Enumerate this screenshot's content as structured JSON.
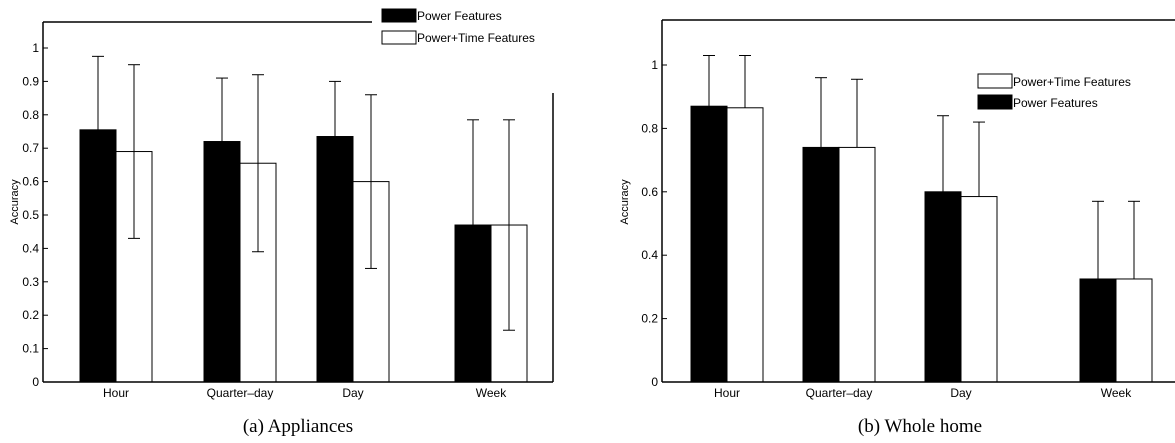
{
  "chart_data": [
    {
      "type": "bar",
      "caption": "(a) Appliances",
      "categories": [
        "Hour",
        "Quarter–day",
        "Day",
        "Week"
      ],
      "ylabel": "Accuracy",
      "ylim": [
        0,
        1.07
      ],
      "yticks": [
        "0",
        "0.1",
        "0.2",
        "0.3",
        "0.4",
        "0.5",
        "0.6",
        "0.7",
        "0.8",
        "0.9",
        "1"
      ],
      "ytick_values": [
        0,
        0.1,
        0.2,
        0.3,
        0.4,
        0.5,
        0.6,
        0.7,
        0.8,
        0.9,
        1
      ],
      "legend_placement": "top-right",
      "series": [
        {
          "name": "Power Features",
          "color": "#000000",
          "values": [
            0.755,
            0.72,
            0.735,
            0.47
          ],
          "err_upper": [
            0.975,
            0.91,
            0.9,
            0.785
          ]
        },
        {
          "name": "Power+Time Features",
          "color": "#ffffff",
          "values": [
            0.69,
            0.655,
            0.6,
            0.47
          ],
          "err_lower": [
            0.43,
            0.39,
            0.34,
            0.155
          ],
          "err_upper": [
            0.95,
            0.92,
            0.86,
            0.785
          ]
        }
      ]
    },
    {
      "type": "bar",
      "caption": "(b) Whole home",
      "categories": [
        "Hour",
        "Quarter–day",
        "Day",
        "Week"
      ],
      "ylabel": "Accuracy",
      "ylim": [
        0,
        1.07
      ],
      "yticks": [
        "0",
        "0.2",
        "0.4",
        "0.6",
        "0.8",
        "1"
      ],
      "ytick_values": [
        0,
        0.2,
        0.4,
        0.6,
        0.8,
        1
      ],
      "legend_placement": "top-right",
      "series": [
        {
          "name": "Power Features",
          "color": "#000000",
          "values": [
            0.87,
            0.74,
            0.6,
            0.325
          ],
          "err_upper": [
            1.03,
            0.96,
            0.84,
            0.57
          ]
        },
        {
          "name": "Power+Time Features",
          "color": "#ffffff",
          "values": [
            0.865,
            0.74,
            0.585,
            0.325
          ],
          "err_upper": [
            1.03,
            0.955,
            0.82,
            0.57
          ]
        }
      ]
    }
  ]
}
